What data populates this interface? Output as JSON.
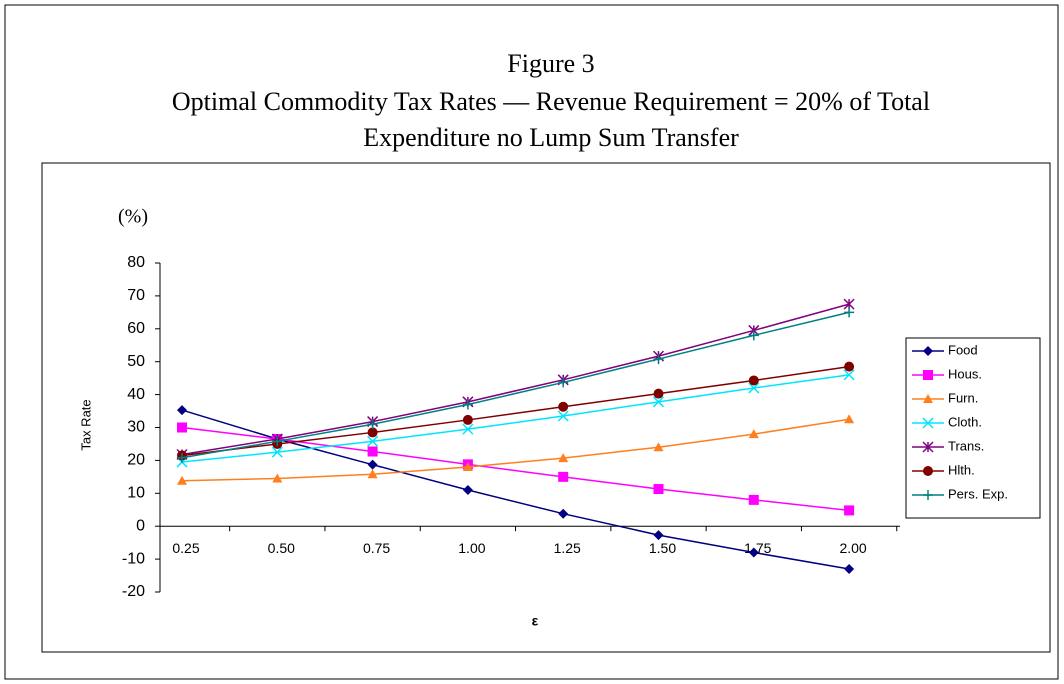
{
  "chart_data": {
    "type": "line",
    "title": "Figure 3",
    "subtitle": [
      "Optimal Commodity Tax Rates — Revenue Requirement = 20% of Total",
      "Expenditure no Lump Sum Transfer"
    ],
    "y_unit": "(%)",
    "y_label": "Tax Rate",
    "x_label": "ε",
    "categories": [
      "0.25",
      "0.50",
      "0.75",
      "1.00",
      "1.25",
      "1.50",
      "1.75",
      "2.00"
    ],
    "ylim": [
      -20,
      80
    ],
    "yticks": [
      -20,
      -10,
      0,
      10,
      20,
      30,
      40,
      50,
      60,
      70,
      80
    ],
    "legend": "right",
    "series": [
      {
        "name": "Food",
        "color": "#000080",
        "marker": "diamond",
        "values": [
          35.3,
          26.5,
          18.7,
          11,
          3.8,
          -2.7,
          -8,
          -13
        ]
      },
      {
        "name": "Hous.",
        "color": "#ff00ff",
        "marker": "square",
        "values": [
          30,
          26.5,
          22.7,
          18.8,
          15,
          11.3,
          8,
          4.8
        ]
      },
      {
        "name": "Furn.",
        "color": "#ff7f1e",
        "marker": "triangle",
        "values": [
          13.8,
          14.5,
          15.8,
          18,
          20.7,
          24,
          28,
          32.5
        ]
      },
      {
        "name": "Cloth.",
        "color": "#00e5ff",
        "marker": "x",
        "values": [
          19.5,
          22.5,
          25.8,
          29.5,
          33.5,
          37.8,
          42,
          46
        ]
      },
      {
        "name": "Trans.",
        "color": "#800080",
        "marker": "star",
        "values": [
          21.8,
          26.5,
          31.8,
          37.8,
          44.5,
          51.7,
          59.5,
          67.5
        ]
      },
      {
        "name": "Hlth.",
        "color": "#800000",
        "marker": "circle",
        "values": [
          21.5,
          25,
          28.5,
          32.3,
          36.3,
          40.3,
          44.3,
          48.5
        ]
      },
      {
        "name": "Pers. Exp.",
        "color": "#008080",
        "marker": "plus",
        "values": [
          20.8,
          25.8,
          31,
          37,
          43.7,
          50.8,
          58,
          65
        ]
      }
    ]
  }
}
